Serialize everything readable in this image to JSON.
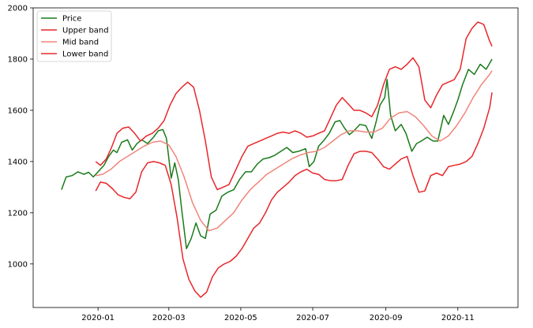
{
  "chart_data": {
    "type": "line",
    "title": "",
    "xlabel": "",
    "ylabel": "",
    "xlim": [
      "2019-11-07",
      "2020-12-22"
    ],
    "ylim": [
      830,
      2000
    ],
    "y_ticks": [
      1000,
      1200,
      1400,
      1600,
      1800,
      2000
    ],
    "x_ticks": [
      {
        "date": "2020-01-01",
        "label": "2020-01"
      },
      {
        "date": "2020-03-01",
        "label": "2020-03"
      },
      {
        "date": "2020-05-01",
        "label": "2020-05"
      },
      {
        "date": "2020-07-01",
        "label": "2020-07"
      },
      {
        "date": "2020-09-01",
        "label": "2020-09"
      },
      {
        "date": "2020-11-01",
        "label": "2020-11"
      }
    ],
    "grid": false,
    "legend_position": "upper-left",
    "series": [
      {
        "name": "Price",
        "color": "#1a7a1a",
        "points": [
          [
            "2019-12-01",
            1290
          ],
          [
            "2019-12-05",
            1340
          ],
          [
            "2019-12-10",
            1345
          ],
          [
            "2019-12-15",
            1360
          ],
          [
            "2019-12-20",
            1350
          ],
          [
            "2019-12-24",
            1358
          ],
          [
            "2019-12-28",
            1340
          ],
          [
            "2020-01-02",
            1365
          ],
          [
            "2020-01-06",
            1385
          ],
          [
            "2020-01-10",
            1420
          ],
          [
            "2020-01-14",
            1445
          ],
          [
            "2020-01-17",
            1435
          ],
          [
            "2020-01-21",
            1475
          ],
          [
            "2020-01-26",
            1485
          ],
          [
            "2020-01-30",
            1445
          ],
          [
            "2020-02-03",
            1470
          ],
          [
            "2020-02-07",
            1485
          ],
          [
            "2020-02-12",
            1470
          ],
          [
            "2020-02-17",
            1495
          ],
          [
            "2020-02-21",
            1520
          ],
          [
            "2020-02-25",
            1525
          ],
          [
            "2020-02-28",
            1490
          ],
          [
            "2020-03-03",
            1335
          ],
          [
            "2020-03-06",
            1395
          ],
          [
            "2020-03-09",
            1330
          ],
          [
            "2020-03-12",
            1210
          ],
          [
            "2020-03-16",
            1060
          ],
          [
            "2020-03-20",
            1100
          ],
          [
            "2020-03-24",
            1160
          ],
          [
            "2020-03-28",
            1110
          ],
          [
            "2020-04-01",
            1100
          ],
          [
            "2020-04-05",
            1195
          ],
          [
            "2020-04-10",
            1210
          ],
          [
            "2020-04-15",
            1265
          ],
          [
            "2020-04-20",
            1280
          ],
          [
            "2020-04-25",
            1290
          ],
          [
            "2020-04-30",
            1330
          ],
          [
            "2020-05-05",
            1360
          ],
          [
            "2020-05-10",
            1360
          ],
          [
            "2020-05-15",
            1390
          ],
          [
            "2020-05-20",
            1410
          ],
          [
            "2020-05-25",
            1415
          ],
          [
            "2020-05-30",
            1425
          ],
          [
            "2020-06-04",
            1440
          ],
          [
            "2020-06-09",
            1455
          ],
          [
            "2020-06-14",
            1435
          ],
          [
            "2020-06-19",
            1440
          ],
          [
            "2020-06-25",
            1450
          ],
          [
            "2020-06-28",
            1380
          ],
          [
            "2020-07-02",
            1400
          ],
          [
            "2020-07-06",
            1460
          ],
          [
            "2020-07-10",
            1480
          ],
          [
            "2020-07-15",
            1510
          ],
          [
            "2020-07-20",
            1555
          ],
          [
            "2020-07-24",
            1560
          ],
          [
            "2020-07-28",
            1530
          ],
          [
            "2020-08-01",
            1505
          ],
          [
            "2020-08-05",
            1520
          ],
          [
            "2020-08-10",
            1545
          ],
          [
            "2020-08-15",
            1540
          ],
          [
            "2020-08-20",
            1490
          ],
          [
            "2020-08-24",
            1560
          ],
          [
            "2020-08-27",
            1620
          ],
          [
            "2020-08-31",
            1650
          ],
          [
            "2020-09-02",
            1720
          ],
          [
            "2020-09-05",
            1580
          ],
          [
            "2020-09-09",
            1520
          ],
          [
            "2020-09-14",
            1545
          ],
          [
            "2020-09-18",
            1510
          ],
          [
            "2020-09-23",
            1440
          ],
          [
            "2020-09-27",
            1470
          ],
          [
            "2020-10-01",
            1480
          ],
          [
            "2020-10-06",
            1495
          ],
          [
            "2020-10-11",
            1480
          ],
          [
            "2020-10-15",
            1480
          ],
          [
            "2020-10-20",
            1580
          ],
          [
            "2020-10-24",
            1545
          ],
          [
            "2020-10-28",
            1590
          ],
          [
            "2020-11-01",
            1640
          ],
          [
            "2020-11-05",
            1700
          ],
          [
            "2020-11-10",
            1760
          ],
          [
            "2020-11-15",
            1740
          ],
          [
            "2020-11-20",
            1780
          ],
          [
            "2020-11-25",
            1760
          ],
          [
            "2020-11-30",
            1800
          ]
        ]
      },
      {
        "name": "Upper band",
        "color": "#e8262a",
        "points": [
          [
            "2019-12-30",
            1400
          ],
          [
            "2020-01-03",
            1385
          ],
          [
            "2020-01-08",
            1410
          ],
          [
            "2020-01-12",
            1450
          ],
          [
            "2020-01-17",
            1510
          ],
          [
            "2020-01-22",
            1530
          ],
          [
            "2020-01-27",
            1535
          ],
          [
            "2020-02-01",
            1510
          ],
          [
            "2020-02-06",
            1480
          ],
          [
            "2020-02-11",
            1500
          ],
          [
            "2020-02-16",
            1510
          ],
          [
            "2020-02-21",
            1530
          ],
          [
            "2020-02-26",
            1560
          ],
          [
            "2020-03-02",
            1620
          ],
          [
            "2020-03-07",
            1665
          ],
          [
            "2020-03-12",
            1690
          ],
          [
            "2020-03-17",
            1710
          ],
          [
            "2020-03-22",
            1690
          ],
          [
            "2020-03-27",
            1600
          ],
          [
            "2020-04-01",
            1480
          ],
          [
            "2020-04-06",
            1340
          ],
          [
            "2020-04-11",
            1290
          ],
          [
            "2020-04-16",
            1300
          ],
          [
            "2020-04-21",
            1310
          ],
          [
            "2020-04-27",
            1370
          ],
          [
            "2020-05-02",
            1420
          ],
          [
            "2020-05-07",
            1460
          ],
          [
            "2020-05-12",
            1470
          ],
          [
            "2020-05-17",
            1480
          ],
          [
            "2020-05-22",
            1490
          ],
          [
            "2020-05-27",
            1500
          ],
          [
            "2020-06-01",
            1510
          ],
          [
            "2020-06-06",
            1515
          ],
          [
            "2020-06-11",
            1510
          ],
          [
            "2020-06-16",
            1520
          ],
          [
            "2020-06-21",
            1510
          ],
          [
            "2020-06-26",
            1495
          ],
          [
            "2020-07-01",
            1500
          ],
          [
            "2020-07-06",
            1510
          ],
          [
            "2020-07-11",
            1520
          ],
          [
            "2020-07-16",
            1570
          ],
          [
            "2020-07-21",
            1620
          ],
          [
            "2020-07-26",
            1650
          ],
          [
            "2020-07-31",
            1625
          ],
          [
            "2020-08-05",
            1600
          ],
          [
            "2020-08-10",
            1600
          ],
          [
            "2020-08-15",
            1590
          ],
          [
            "2020-08-20",
            1575
          ],
          [
            "2020-08-25",
            1620
          ],
          [
            "2020-08-30",
            1700
          ],
          [
            "2020-09-04",
            1760
          ],
          [
            "2020-09-09",
            1770
          ],
          [
            "2020-09-14",
            1760
          ],
          [
            "2020-09-19",
            1780
          ],
          [
            "2020-09-24",
            1805
          ],
          [
            "2020-09-29",
            1770
          ],
          [
            "2020-10-04",
            1640
          ],
          [
            "2020-10-09",
            1610
          ],
          [
            "2020-10-14",
            1660
          ],
          [
            "2020-10-19",
            1700
          ],
          [
            "2020-10-24",
            1710
          ],
          [
            "2020-10-29",
            1720
          ],
          [
            "2020-11-03",
            1760
          ],
          [
            "2020-11-08",
            1880
          ],
          [
            "2020-11-13",
            1920
          ],
          [
            "2020-11-18",
            1945
          ],
          [
            "2020-11-23",
            1935
          ],
          [
            "2020-11-28",
            1870
          ],
          [
            "2020-11-30",
            1850
          ]
        ]
      },
      {
        "name": "Mid band",
        "color": "#f0857a",
        "points": [
          [
            "2019-12-30",
            1345
          ],
          [
            "2020-01-05",
            1350
          ],
          [
            "2020-01-12",
            1370
          ],
          [
            "2020-01-19",
            1400
          ],
          [
            "2020-01-26",
            1420
          ],
          [
            "2020-02-02",
            1440
          ],
          [
            "2020-02-09",
            1460
          ],
          [
            "2020-02-16",
            1475
          ],
          [
            "2020-02-23",
            1480
          ],
          [
            "2020-03-01",
            1465
          ],
          [
            "2020-03-07",
            1420
          ],
          [
            "2020-03-14",
            1340
          ],
          [
            "2020-03-21",
            1240
          ],
          [
            "2020-03-28",
            1170
          ],
          [
            "2020-04-04",
            1130
          ],
          [
            "2020-04-11",
            1140
          ],
          [
            "2020-04-18",
            1170
          ],
          [
            "2020-04-25",
            1200
          ],
          [
            "2020-05-02",
            1250
          ],
          [
            "2020-05-09",
            1290
          ],
          [
            "2020-05-16",
            1320
          ],
          [
            "2020-05-23",
            1350
          ],
          [
            "2020-05-30",
            1370
          ],
          [
            "2020-06-06",
            1390
          ],
          [
            "2020-06-13",
            1410
          ],
          [
            "2020-06-20",
            1425
          ],
          [
            "2020-06-27",
            1435
          ],
          [
            "2020-07-04",
            1440
          ],
          [
            "2020-07-11",
            1455
          ],
          [
            "2020-07-18",
            1480
          ],
          [
            "2020-07-25",
            1505
          ],
          [
            "2020-08-01",
            1520
          ],
          [
            "2020-08-08",
            1520
          ],
          [
            "2020-08-15",
            1515
          ],
          [
            "2020-08-22",
            1515
          ],
          [
            "2020-08-29",
            1530
          ],
          [
            "2020-09-05",
            1570
          ],
          [
            "2020-09-12",
            1590
          ],
          [
            "2020-09-19",
            1595
          ],
          [
            "2020-09-26",
            1575
          ],
          [
            "2020-10-03",
            1540
          ],
          [
            "2020-10-10",
            1500
          ],
          [
            "2020-10-17",
            1480
          ],
          [
            "2020-10-24",
            1500
          ],
          [
            "2020-10-31",
            1540
          ],
          [
            "2020-11-07",
            1590
          ],
          [
            "2020-11-14",
            1650
          ],
          [
            "2020-11-21",
            1700
          ],
          [
            "2020-11-28",
            1740
          ],
          [
            "2020-11-30",
            1755
          ]
        ]
      },
      {
        "name": "Lower band",
        "color": "#e8262a",
        "points": [
          [
            "2019-12-30",
            1285
          ],
          [
            "2020-01-03",
            1320
          ],
          [
            "2020-01-08",
            1315
          ],
          [
            "2020-01-13",
            1295
          ],
          [
            "2020-01-18",
            1270
          ],
          [
            "2020-01-23",
            1260
          ],
          [
            "2020-01-28",
            1255
          ],
          [
            "2020-02-02",
            1280
          ],
          [
            "2020-02-07",
            1360
          ],
          [
            "2020-02-12",
            1395
          ],
          [
            "2020-02-17",
            1400
          ],
          [
            "2020-02-22",
            1395
          ],
          [
            "2020-02-27",
            1385
          ],
          [
            "2020-03-03",
            1310
          ],
          [
            "2020-03-08",
            1180
          ],
          [
            "2020-03-13",
            1020
          ],
          [
            "2020-03-18",
            940
          ],
          [
            "2020-03-23",
            895
          ],
          [
            "2020-03-28",
            870
          ],
          [
            "2020-04-02",
            890
          ],
          [
            "2020-04-07",
            950
          ],
          [
            "2020-04-12",
            985
          ],
          [
            "2020-04-17",
            1000
          ],
          [
            "2020-04-22",
            1010
          ],
          [
            "2020-04-27",
            1030
          ],
          [
            "2020-05-02",
            1060
          ],
          [
            "2020-05-07",
            1100
          ],
          [
            "2020-05-12",
            1140
          ],
          [
            "2020-05-17",
            1160
          ],
          [
            "2020-05-22",
            1200
          ],
          [
            "2020-05-27",
            1250
          ],
          [
            "2020-06-01",
            1280
          ],
          [
            "2020-06-06",
            1300
          ],
          [
            "2020-06-11",
            1320
          ],
          [
            "2020-06-16",
            1345
          ],
          [
            "2020-06-21",
            1360
          ],
          [
            "2020-06-26",
            1370
          ],
          [
            "2020-07-01",
            1355
          ],
          [
            "2020-07-06",
            1350
          ],
          [
            "2020-07-11",
            1330
          ],
          [
            "2020-07-16",
            1325
          ],
          [
            "2020-07-21",
            1325
          ],
          [
            "2020-07-26",
            1330
          ],
          [
            "2020-07-31",
            1385
          ],
          [
            "2020-08-05",
            1430
          ],
          [
            "2020-08-10",
            1440
          ],
          [
            "2020-08-15",
            1440
          ],
          [
            "2020-08-20",
            1435
          ],
          [
            "2020-08-25",
            1410
          ],
          [
            "2020-08-30",
            1380
          ],
          [
            "2020-09-04",
            1370
          ],
          [
            "2020-09-09",
            1390
          ],
          [
            "2020-09-14",
            1410
          ],
          [
            "2020-09-19",
            1420
          ],
          [
            "2020-09-24",
            1345
          ],
          [
            "2020-09-29",
            1280
          ],
          [
            "2020-10-04",
            1285
          ],
          [
            "2020-10-09",
            1345
          ],
          [
            "2020-10-14",
            1355
          ],
          [
            "2020-10-19",
            1345
          ],
          [
            "2020-10-24",
            1380
          ],
          [
            "2020-10-29",
            1385
          ],
          [
            "2020-11-03",
            1390
          ],
          [
            "2020-11-08",
            1400
          ],
          [
            "2020-11-13",
            1420
          ],
          [
            "2020-11-18",
            1470
          ],
          [
            "2020-11-23",
            1530
          ],
          [
            "2020-11-28",
            1610
          ],
          [
            "2020-11-30",
            1670
          ]
        ]
      }
    ]
  }
}
